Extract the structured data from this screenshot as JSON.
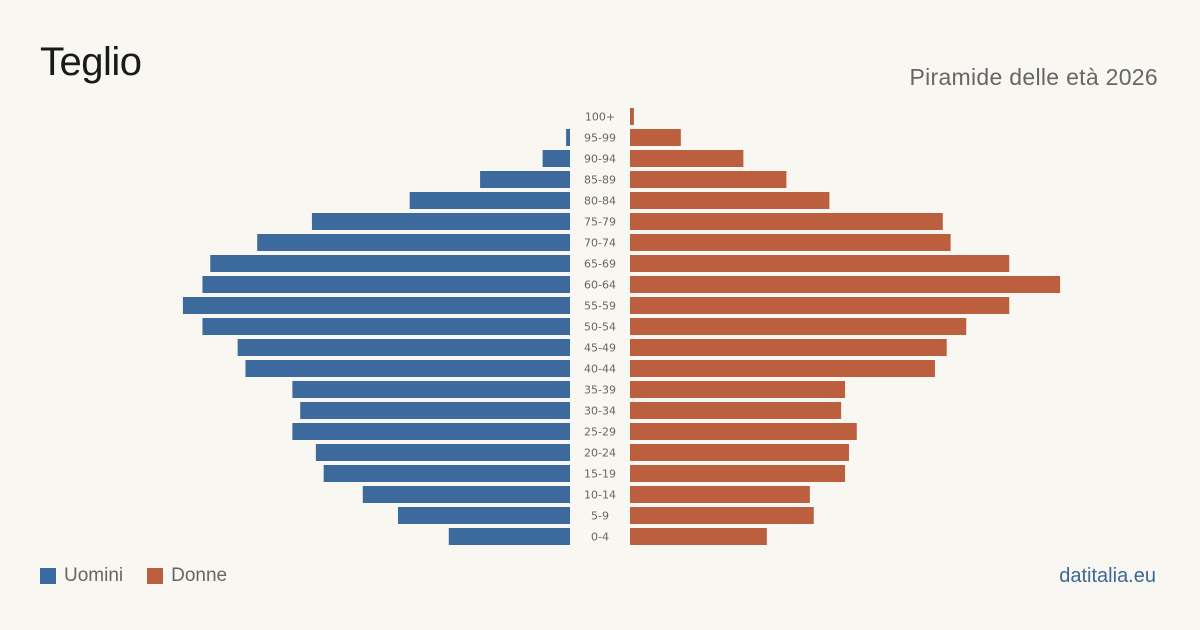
{
  "title": "Teglio",
  "subtitle": "Piramide delle età 2026",
  "brand": "datitalia.eu",
  "legend": {
    "male_label": "Uomini",
    "female_label": "Donne"
  },
  "colors": {
    "male": "#3d6a9c",
    "female": "#bb5f3f"
  },
  "chart_data": {
    "type": "bar",
    "orientation": "horizontal-pyramid",
    "categories": [
      "100+",
      "95-99",
      "90-94",
      "85-89",
      "80-84",
      "75-79",
      "70-74",
      "65-69",
      "60-64",
      "55-59",
      "50-54",
      "45-49",
      "40-44",
      "35-39",
      "30-34",
      "25-29",
      "20-24",
      "15-19",
      "10-14",
      "5-9",
      "0-4"
    ],
    "series": [
      {
        "name": "Uomini",
        "values": [
          0,
          1,
          7,
          23,
          41,
          66,
          80,
          92,
          94,
          99,
          94,
          85,
          83,
          71,
          69,
          71,
          65,
          63,
          53,
          44,
          31
        ]
      },
      {
        "name": "Donne",
        "values": [
          1,
          13,
          29,
          40,
          51,
          80,
          82,
          97,
          110,
          97,
          86,
          81,
          78,
          55,
          54,
          58,
          56,
          55,
          46,
          47,
          35
        ]
      }
    ],
    "grid": false,
    "legend_position": "bottom-left"
  }
}
